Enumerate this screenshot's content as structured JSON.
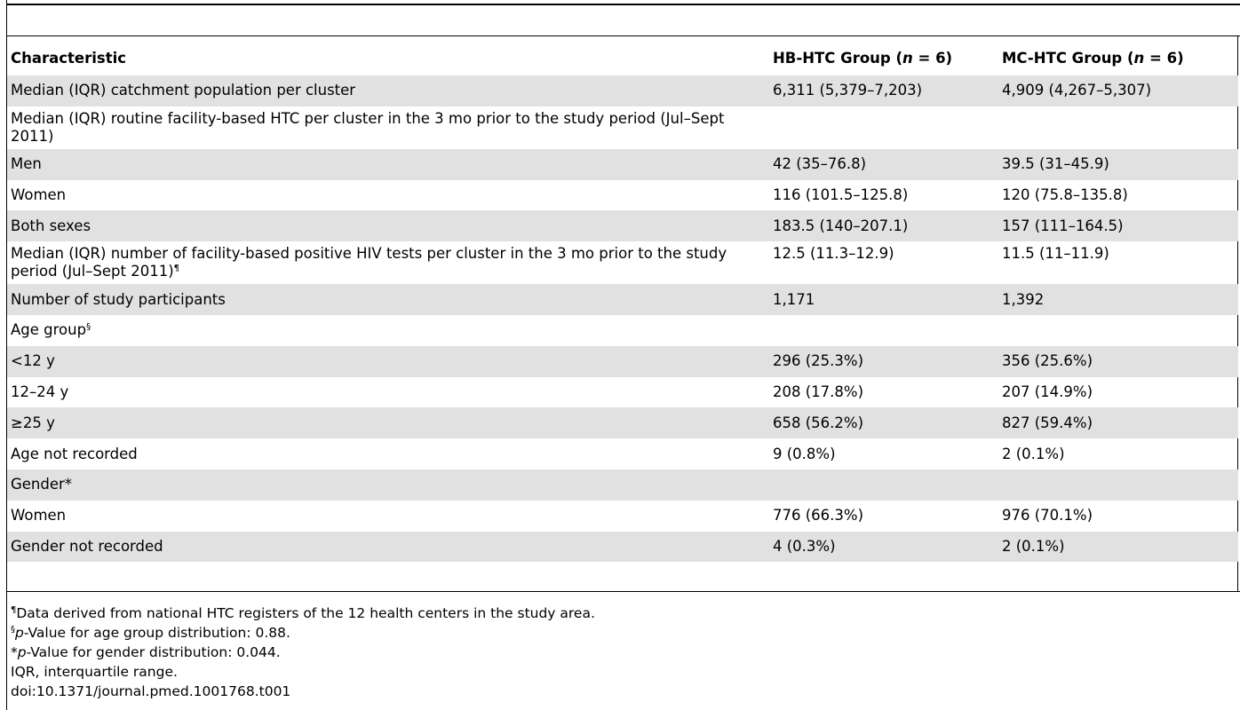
{
  "headers": {
    "characteristic": "Characteristic",
    "hb_prefix": "HB-HTC Group (",
    "hb_n": "n",
    "hb_suffix": " = 6)",
    "mc_prefix": "MC-HTC Group (",
    "mc_n": "n",
    "mc_suffix": " = 6)"
  },
  "rows": {
    "catchment": {
      "label": "Median (IQR) catchment population per cluster",
      "hb": "6,311 (5,379–7,203)",
      "mc": "4,909 (4,267–5,307)"
    },
    "routine": {
      "label": "Median (IQR) routine facility-based HTC per cluster in the 3 mo prior to the study period (Jul–Sept 2011)"
    },
    "men": {
      "label": "Men",
      "hb": "42 (35–76.8)",
      "mc": "39.5 (31–45.9)"
    },
    "women": {
      "label": "Women",
      "hb": "116 (101.5–125.8)",
      "mc": "120 (75.8–135.8)"
    },
    "both": {
      "label": "Both sexes",
      "hb": "183.5 (140–207.1)",
      "mc": "157 (111–164.5)"
    },
    "positive": {
      "label": "Median (IQR) number of facility-based positive HIV tests per cluster in the 3 mo prior to the study period (Jul–Sept 2011)",
      "mark": "¶",
      "hb": "12.5 (11.3–12.9)",
      "mc": "11.5 (11–11.9)"
    },
    "participants": {
      "label": "Number of study participants",
      "hb": "1,171",
      "mc": "1,392"
    },
    "age_group": {
      "label": "Age group",
      "mark": "§"
    },
    "age_lt12": {
      "label": "<12 y",
      "hb": "296 (25.3%)",
      "mc": "356 (25.6%)"
    },
    "age_12_24": {
      "label": "12–24 y",
      "hb": "208 (17.8%)",
      "mc": "207 (14.9%)"
    },
    "age_ge25": {
      "label": "≥25 y",
      "hb": "658 (56.2%)",
      "mc": "827 (59.4%)"
    },
    "age_nr": {
      "label": "Age not recorded",
      "hb": "9 (0.8%)",
      "mc": "2 (0.1%)"
    },
    "gender": {
      "label": "Gender*"
    },
    "g_women": {
      "label": "Women",
      "hb": "776 (66.3%)",
      "mc": "976 (70.1%)"
    },
    "g_nr": {
      "label": "Gender not recorded",
      "hb": "4 (0.3%)",
      "mc": "2 (0.1%)"
    }
  },
  "footnotes": {
    "f1_mark": "¶",
    "f1_text": "Data derived from national HTC registers of the 12 health centers in the study area.",
    "f2_mark": "§",
    "f2_p": "p",
    "f2_text": "-Value for age group distribution: 0.88.",
    "f3_mark": "*",
    "f3_p": "p",
    "f3_text": "-Value for gender distribution: 0.044.",
    "f4_text": "IQR, interquartile range.",
    "f5_text": "doi:10.1371/journal.pmed.1001768.t001"
  }
}
